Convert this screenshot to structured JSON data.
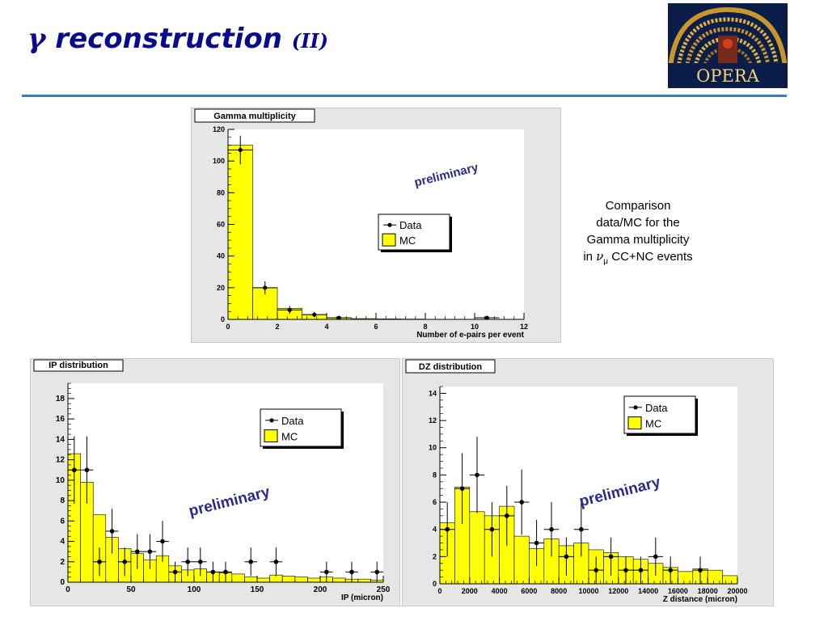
{
  "slide": {
    "title_symbol": "γ",
    "title_main": "reconstruction",
    "title_sub": "(II)"
  },
  "logo": {
    "text": "OPERA"
  },
  "caption": {
    "line1": "Comparison",
    "line2": "data/MC for the",
    "line3": "Gamma multiplicity",
    "line4_prefix": "in",
    "nu": "ν",
    "mu": "μ",
    "line4_suffix": "CC+NC events"
  },
  "colors": {
    "mc_fill": "#ffff00",
    "frame_bg": "#e6e6e6",
    "plot_bg": "#ffffff",
    "preliminary": "#2a2a8c",
    "title_blue": "#0a0a8c",
    "rule": "#3a78d8"
  },
  "chart_data": [
    {
      "id": "gamma",
      "type": "bar",
      "title": "Gamma multiplicity",
      "xlabel": "Number of e-pairs per event",
      "ylabel": "",
      "xlim": [
        0,
        12
      ],
      "ylim": [
        0,
        120
      ],
      "xticks": [
        0,
        2,
        4,
        6,
        8,
        10,
        12
      ],
      "yticks": [
        0,
        20,
        40,
        60,
        80,
        100,
        120
      ],
      "grid": false,
      "legend_position": "center-right",
      "annotation": "preliminary",
      "series": [
        {
          "name": "MC",
          "style": "histogram",
          "bin_edges": [
            0,
            1,
            2,
            3,
            4,
            5,
            6,
            7,
            8,
            9,
            10,
            11,
            12
          ],
          "values": [
            110,
            20,
            7,
            3,
            1,
            0.5,
            0.3,
            0.2,
            0.1,
            0.1,
            0.1,
            0.1
          ]
        },
        {
          "name": "Data",
          "style": "points",
          "x": [
            0.5,
            1.5,
            2.5,
            3.5,
            4.5,
            10.5
          ],
          "y": [
            107,
            20,
            6,
            3,
            1,
            1
          ],
          "err": [
            9,
            4,
            2.5,
            1.7,
            1,
            1
          ]
        }
      ]
    },
    {
      "id": "ip",
      "type": "bar",
      "title": "IP distribution",
      "xlabel": "IP (micron)",
      "ylabel": "",
      "xlim": [
        0,
        250
      ],
      "ylim": [
        0,
        19.5
      ],
      "xticks": [
        0,
        50,
        100,
        150,
        200,
        250
      ],
      "yticks": [
        0,
        2,
        4,
        6,
        8,
        10,
        12,
        14,
        16,
        18
      ],
      "grid": false,
      "legend_position": "top-right",
      "annotation": "preliminary",
      "series": [
        {
          "name": "MC",
          "style": "histogram",
          "bin_edges": [
            0,
            10,
            20,
            30,
            40,
            50,
            60,
            70,
            80,
            90,
            100,
            110,
            120,
            130,
            140,
            150,
            160,
            170,
            180,
            190,
            200,
            210,
            220,
            230,
            240,
            250
          ],
          "values": [
            12.6,
            9.8,
            6.6,
            4.4,
            3.3,
            2.8,
            2.2,
            2.6,
            1.6,
            1.2,
            1.3,
            1.0,
            0.9,
            0.8,
            0.5,
            0.4,
            0.7,
            0.6,
            0.5,
            0.4,
            0.5,
            0.4,
            0.3,
            0.3,
            0.2
          ]
        },
        {
          "name": "Data",
          "style": "points",
          "x": [
            5,
            15,
            25,
            35,
            45,
            55,
            65,
            75,
            85,
            95,
            105,
            115,
            125,
            145,
            165,
            205,
            225,
            245
          ],
          "y": [
            11,
            11,
            2,
            5,
            2,
            3,
            3,
            4,
            1,
            2,
            2,
            1,
            1,
            2,
            2,
            1,
            1,
            1
          ],
          "err": [
            3.3,
            3.3,
            1.4,
            2.2,
            1.4,
            1.7,
            1.7,
            2.0,
            1.0,
            1.4,
            1.4,
            1.0,
            1.0,
            1.4,
            1.4,
            1.0,
            1.0,
            1.0
          ]
        }
      ]
    },
    {
      "id": "dz",
      "type": "bar",
      "title": "DZ distribution",
      "xlabel": "Z distance (micron)",
      "ylabel": "",
      "xlim": [
        0,
        20000
      ],
      "ylim": [
        0,
        14.5
      ],
      "xticks": [
        0,
        2000,
        4000,
        6000,
        8000,
        10000,
        12000,
        14000,
        16000,
        18000,
        20000
      ],
      "yticks": [
        0,
        2,
        4,
        6,
        8,
        10,
        12,
        14
      ],
      "grid": false,
      "legend_position": "top-right",
      "annotation": "preliminary",
      "series": [
        {
          "name": "MC",
          "style": "histogram",
          "bin_edges": [
            0,
            1000,
            2000,
            3000,
            4000,
            5000,
            6000,
            7000,
            8000,
            9000,
            10000,
            11000,
            12000,
            13000,
            14000,
            15000,
            16000,
            17000,
            18000,
            19000,
            20000
          ],
          "values": [
            4.5,
            7.1,
            5.3,
            5.0,
            5.7,
            3.5,
            2.6,
            3.3,
            2.8,
            3.0,
            2.5,
            2.3,
            2.0,
            1.8,
            1.5,
            1.2,
            0.9,
            1.1,
            1.0,
            0.6
          ]
        },
        {
          "name": "Data",
          "style": "points",
          "x": [
            500,
            1500,
            2500,
            3500,
            4500,
            5500,
            6500,
            7500,
            8500,
            9500,
            10500,
            11500,
            12500,
            13500,
            14500,
            15500,
            17500
          ],
          "y": [
            4,
            7,
            8,
            4,
            5,
            6,
            3,
            4,
            2,
            4,
            1,
            2,
            1,
            1,
            2,
            1,
            1
          ],
          "err": [
            2.0,
            2.6,
            2.8,
            2.0,
            2.2,
            2.4,
            1.7,
            2.0,
            1.4,
            2.0,
            1.0,
            1.4,
            1.0,
            1.0,
            1.4,
            1.0,
            1.0
          ]
        }
      ]
    }
  ]
}
